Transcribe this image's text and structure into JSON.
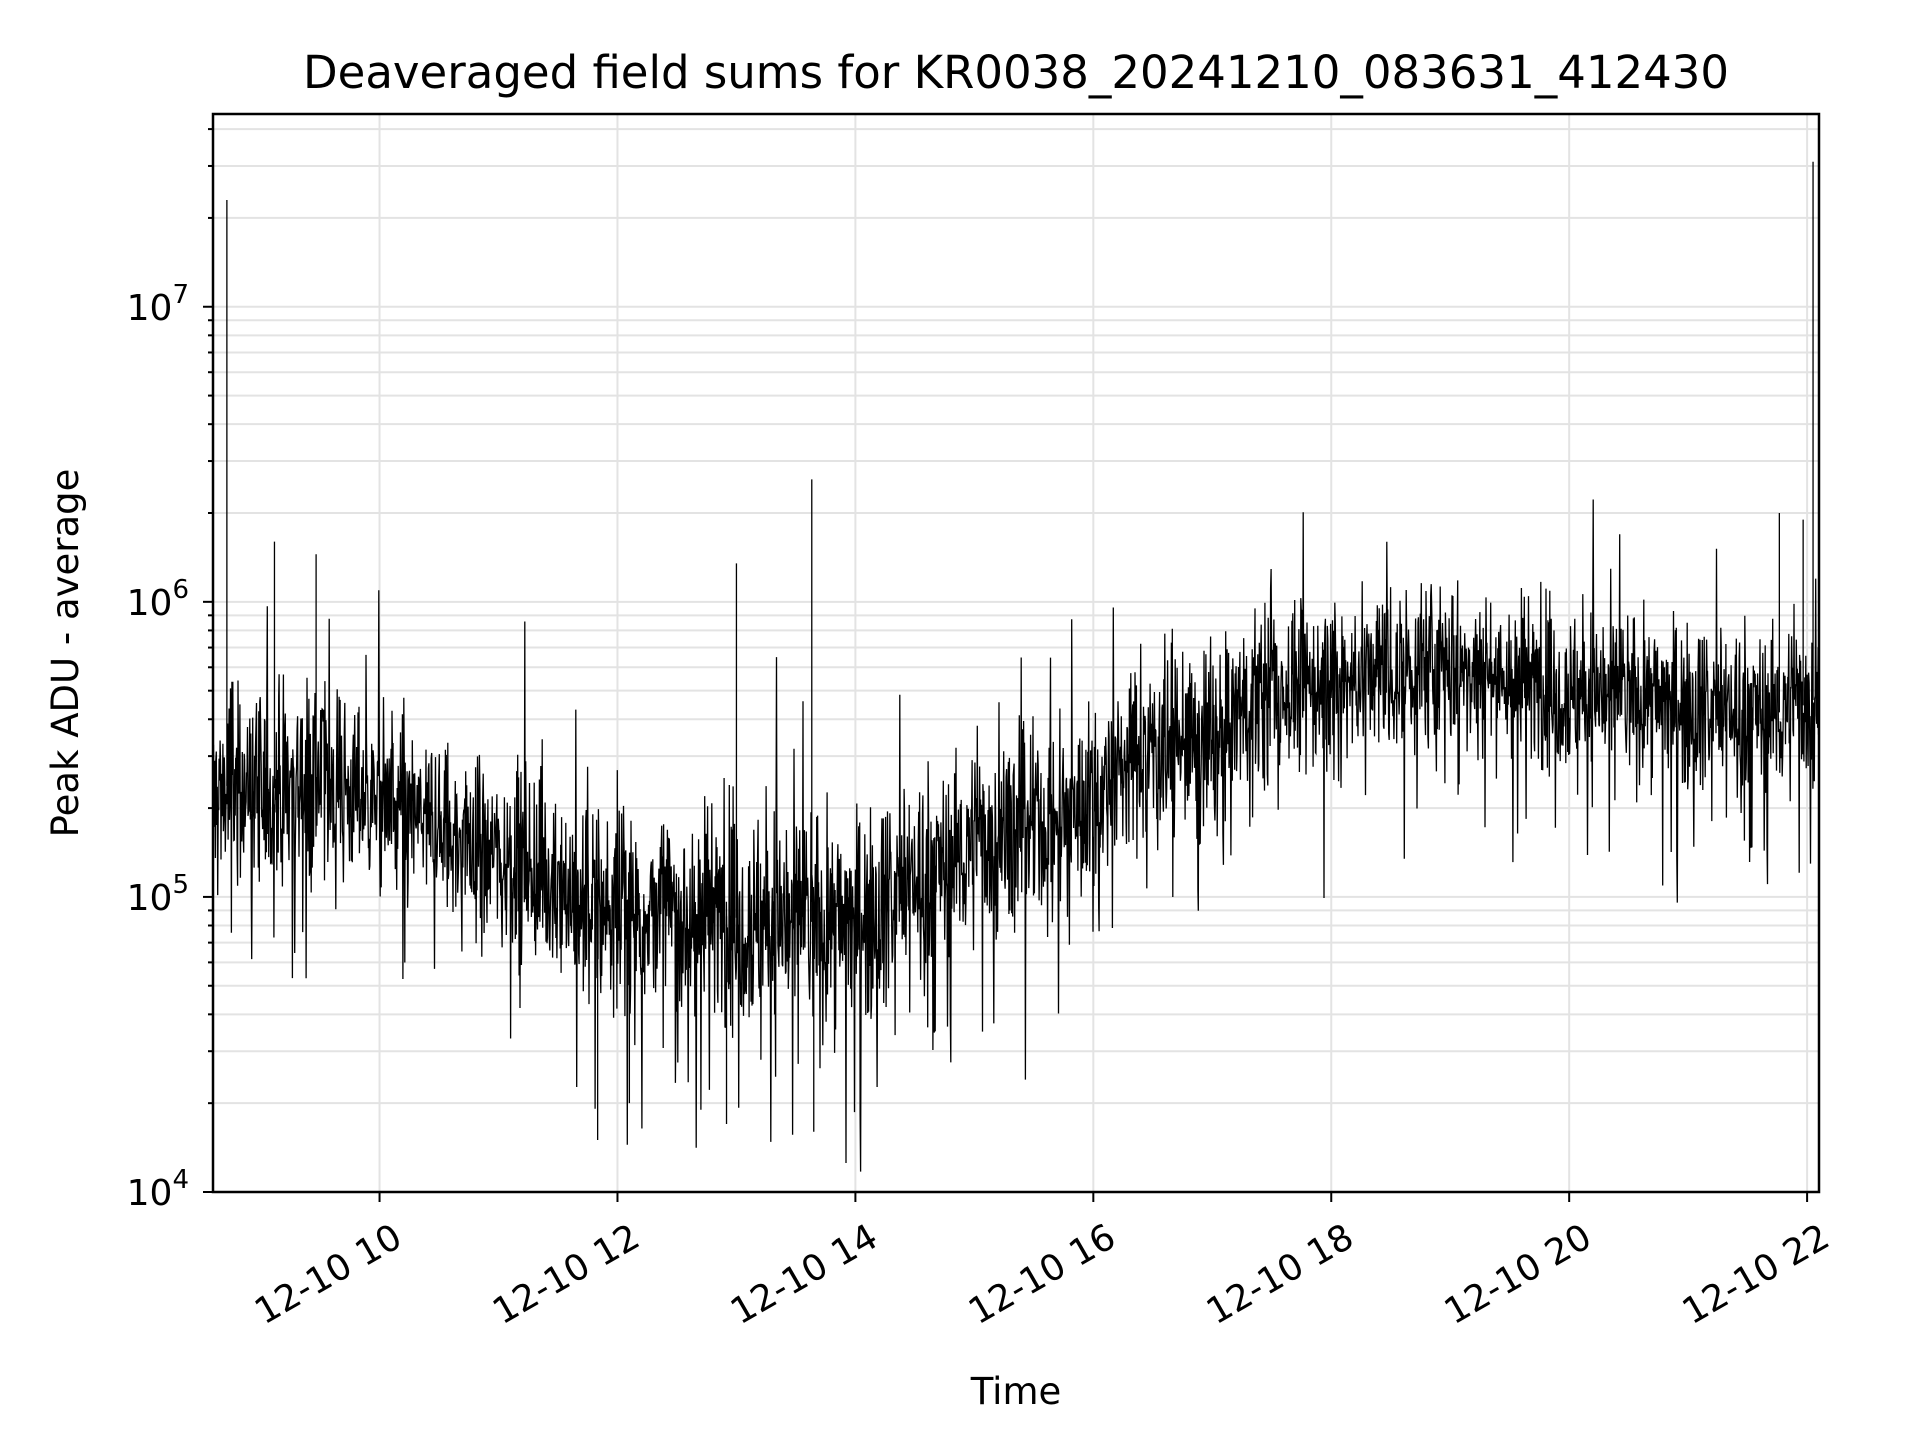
{
  "chart_data": {
    "type": "line",
    "title": "Deaveraged field sums for KR0038_20241210_083631_412430",
    "xlabel": "Time",
    "ylabel": "Peak ADU - average",
    "x_axis": {
      "kind": "time",
      "range": [
        "2024-12-10 08:36",
        "2024-12-10 22:06"
      ],
      "ticks": [
        {
          "value": "2024-12-10 10:00",
          "label": "12-10 10"
        },
        {
          "value": "2024-12-10 12:00",
          "label": "12-10 12"
        },
        {
          "value": "2024-12-10 14:00",
          "label": "12-10 14"
        },
        {
          "value": "2024-12-10 16:00",
          "label": "12-10 16"
        },
        {
          "value": "2024-12-10 18:00",
          "label": "12-10 18"
        },
        {
          "value": "2024-12-10 20:00",
          "label": "12-10 20"
        },
        {
          "value": "2024-12-10 22:00",
          "label": "12-10 22"
        }
      ]
    },
    "y_axis": {
      "scale": "log",
      "range": [
        10000,
        45000000
      ],
      "ticks": [
        {
          "value": 10000,
          "base": "10",
          "exp": "4"
        },
        {
          "value": 100000,
          "base": "10",
          "exp": "5"
        },
        {
          "value": 1000000,
          "base": "10",
          "exp": "6"
        },
        {
          "value": 10000000,
          "base": "10",
          "exp": "7"
        }
      ]
    },
    "grid": true,
    "legend": "none",
    "series": [
      {
        "color": "#000000",
        "x": [
          "2024-12-10 08:36",
          "2024-12-10 08:45",
          "2024-12-10 09:00",
          "2024-12-10 09:15",
          "2024-12-10 09:30",
          "2024-12-10 09:45",
          "2024-12-10 10:00",
          "2024-12-10 10:15",
          "2024-12-10 10:30",
          "2024-12-10 10:45",
          "2024-12-10 11:00",
          "2024-12-10 11:15",
          "2024-12-10 11:30",
          "2024-12-10 11:45",
          "2024-12-10 12:00",
          "2024-12-10 12:15",
          "2024-12-10 12:30",
          "2024-12-10 12:45",
          "2024-12-10 13:00",
          "2024-12-10 13:15",
          "2024-12-10 13:30",
          "2024-12-10 13:45",
          "2024-12-10 14:00",
          "2024-12-10 14:15",
          "2024-12-10 14:30",
          "2024-12-10 14:45",
          "2024-12-10 15:00",
          "2024-12-10 15:15",
          "2024-12-10 15:30",
          "2024-12-10 15:45",
          "2024-12-10 16:00",
          "2024-12-10 16:15",
          "2024-12-10 16:30",
          "2024-12-10 16:45",
          "2024-12-10 17:00",
          "2024-12-10 17:15",
          "2024-12-10 17:30",
          "2024-12-10 17:45",
          "2024-12-10 18:00",
          "2024-12-10 18:15",
          "2024-12-10 18:30",
          "2024-12-10 18:45",
          "2024-12-10 19:00",
          "2024-12-10 19:15",
          "2024-12-10 19:30",
          "2024-12-10 19:45",
          "2024-12-10 20:00",
          "2024-12-10 20:15",
          "2024-12-10 20:30",
          "2024-12-10 20:45",
          "2024-12-10 21:00",
          "2024-12-10 21:15",
          "2024-12-10 21:30",
          "2024-12-10 21:45",
          "2024-12-10 22:00",
          "2024-12-10 22:06"
        ],
        "y": [
          200000,
          250000,
          220000,
          250000,
          250000,
          240000,
          210000,
          190000,
          170000,
          150000,
          140000,
          130000,
          110000,
          95000,
          90000,
          88000,
          90000,
          88000,
          85000,
          85000,
          85000,
          80000,
          85000,
          100000,
          120000,
          130000,
          150000,
          160000,
          170000,
          190000,
          220000,
          280000,
          330000,
          340000,
          310000,
          450000,
          500000,
          520000,
          530000,
          560000,
          580000,
          600000,
          600000,
          590000,
          560000,
          520000,
          500000,
          500000,
          480000,
          470000,
          460000,
          450000,
          440000,
          420000,
          450000,
          480000
        ],
        "band": [
          0.32,
          0.3,
          0.3,
          0.28,
          0.28,
          0.26,
          0.26,
          0.25,
          0.25,
          0.25,
          0.25,
          0.25,
          0.26,
          0.28,
          0.28,
          0.28,
          0.28,
          0.28,
          0.3,
          0.3,
          0.3,
          0.3,
          0.28,
          0.28,
          0.26,
          0.26,
          0.25,
          0.25,
          0.25,
          0.25,
          0.24,
          0.24,
          0.24,
          0.24,
          0.24,
          0.22,
          0.22,
          0.22,
          0.22,
          0.22,
          0.22,
          0.22,
          0.22,
          0.22,
          0.22,
          0.22,
          0.22,
          0.22,
          0.22,
          0.22,
          0.22,
          0.22,
          0.22,
          0.22,
          0.22,
          0.22
        ]
      }
    ],
    "spikes": [
      {
        "x": "2024-12-10 08:43",
        "y": 23000000
      },
      {
        "x": "2024-12-10 09:07",
        "y": 1600000
      },
      {
        "x": "2024-12-10 09:28",
        "y": 1450000
      },
      {
        "x": "2024-12-10 13:00",
        "y": 1350000
      },
      {
        "x": "2024-12-10 13:38",
        "y": 2600000
      },
      {
        "x": "2024-12-10 21:46",
        "y": 2000000
      },
      {
        "x": "2024-12-10 21:58",
        "y": 1900000
      },
      {
        "x": "2024-12-10 22:03",
        "y": 31000000
      },
      {
        "x": "2024-12-10 11:50",
        "y": 15000
      },
      {
        "x": "2024-12-10 12:06",
        "y": 20000
      },
      {
        "x": "2024-12-10 12:55",
        "y": 17000
      },
      {
        "x": "2024-12-10 13:39",
        "y": 16000
      }
    ]
  }
}
